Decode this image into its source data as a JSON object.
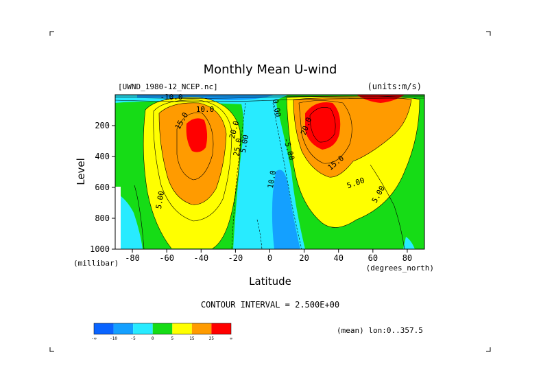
{
  "title": "Monthly Mean U-wind",
  "dataset": "[UWND_1980-12_NCEP.nc]",
  "units": "(units:m/s)",
  "contour_interval": "CONTOUR INTERVAL = 2.500E+00",
  "mean_note": "(mean) lon:0..357.5",
  "colorbar": {
    "colors": [
      "#0a64ff",
      "#14a0ff",
      "#28ebff",
      "#16dc16",
      "#ffff00",
      "#ff9b00",
      "#ff0000"
    ],
    "labels": [
      "-∞",
      "-10",
      "-5",
      "0",
      "5",
      "15",
      "25",
      "∞"
    ]
  },
  "chart_data": {
    "type": "heatmap",
    "title": "Monthly Mean U-wind",
    "xlabel": "Latitude",
    "xunits": "(degrees_north)",
    "ylabel": "Level",
    "yunits": "(millibar)",
    "xlim": [
      -90,
      90
    ],
    "ylim": [
      1000,
      0
    ],
    "x_ticks": [
      -80,
      -60,
      -40,
      -20,
      0,
      20,
      40,
      60,
      80
    ],
    "y_ticks": [
      200,
      400,
      600,
      800,
      1000
    ],
    "contour_labels": [
      "-10.0",
      "10.0",
      "15.0",
      "20.0",
      "25.0",
      "5.00",
      "0.00",
      "-5.00",
      "10.0",
      "5.00",
      "5.00"
    ],
    "jets": [
      {
        "lat": -45,
        "level": 250,
        "max": 27.5
      },
      {
        "lat": 30,
        "level": 200,
        "max": 32.5
      },
      {
        "lat": 60,
        "level": 20,
        "max": 30
      }
    ]
  }
}
